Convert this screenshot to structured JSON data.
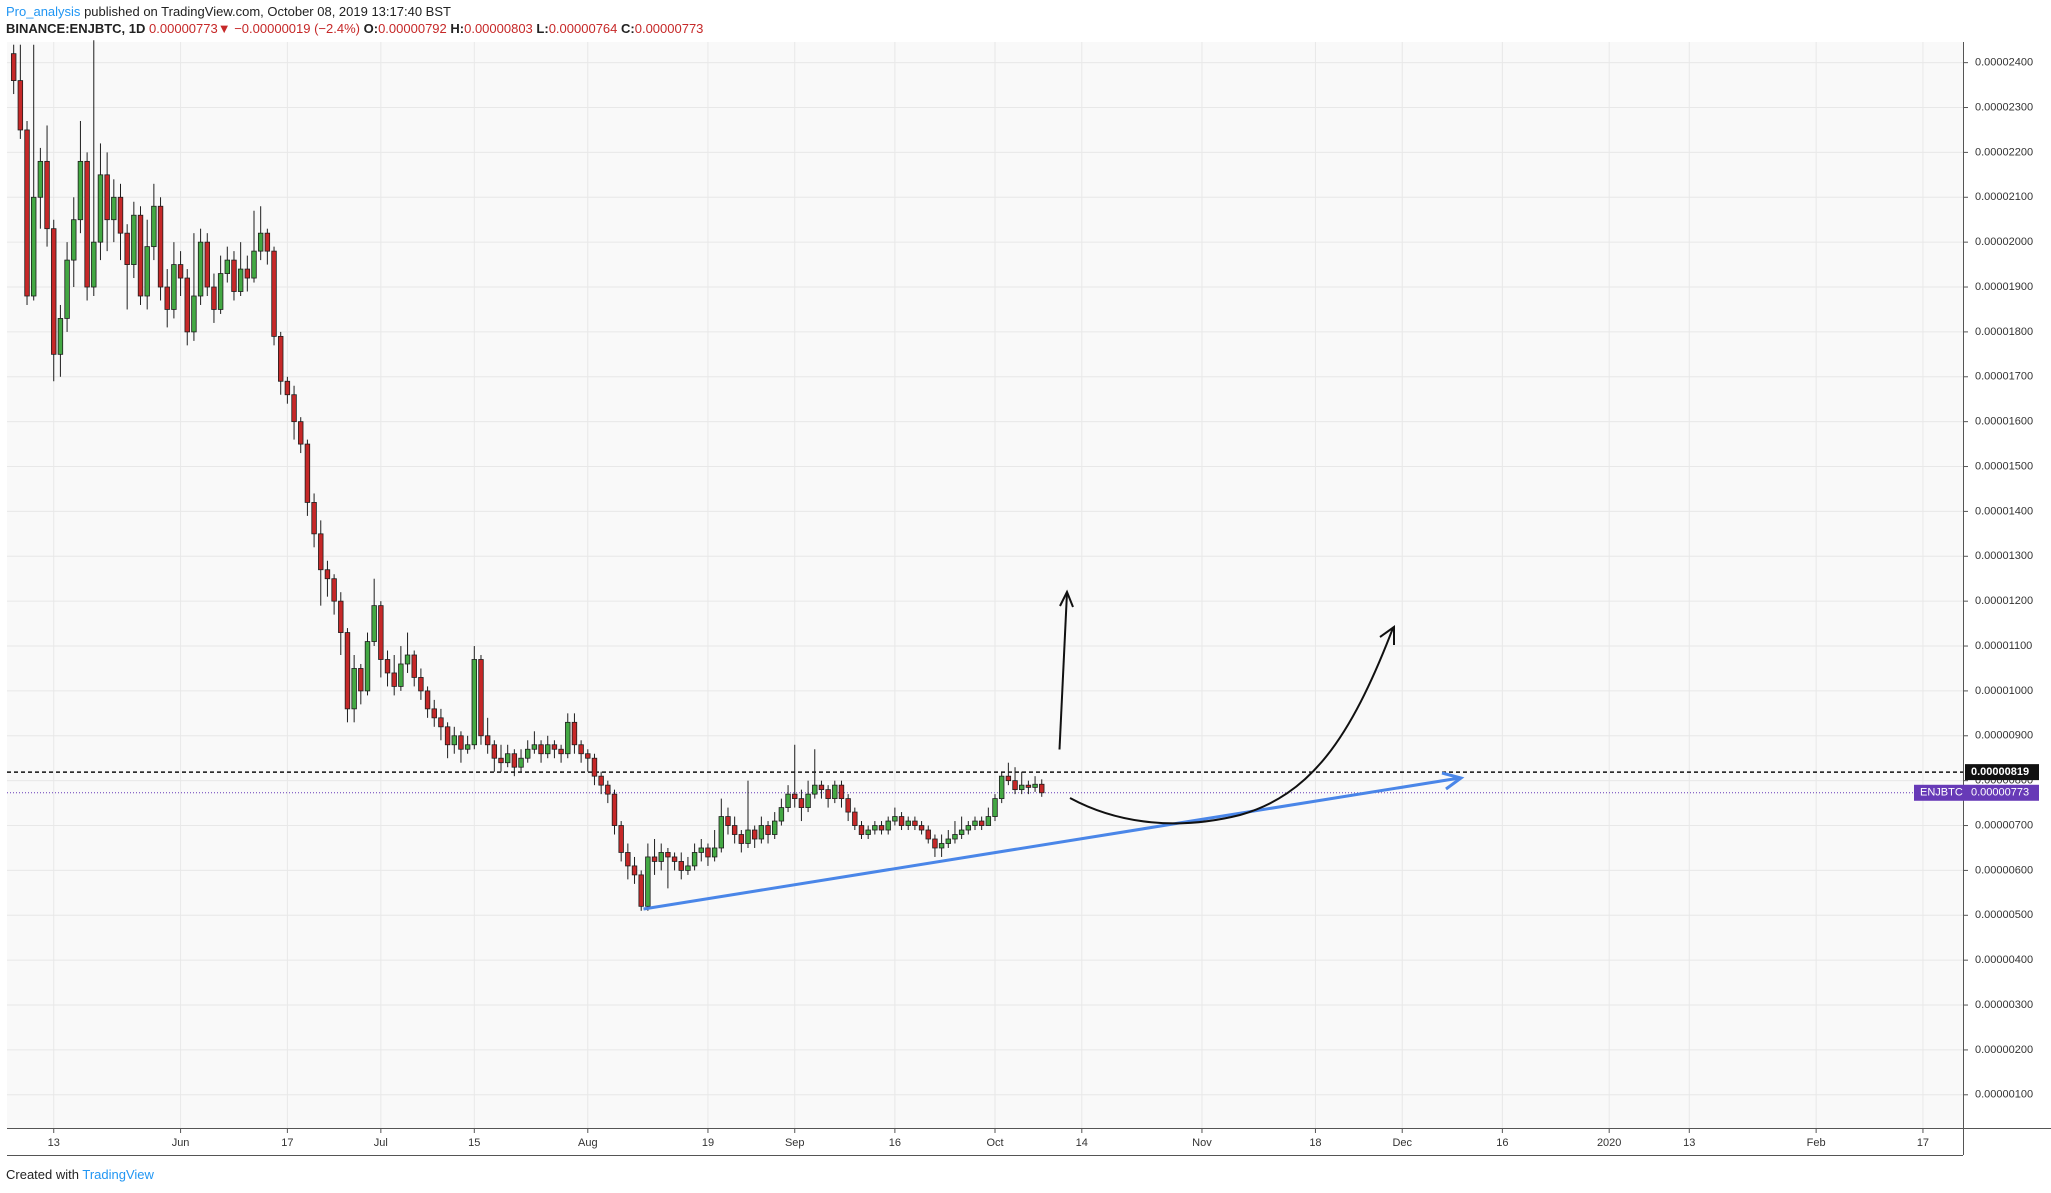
{
  "header": {
    "author": "Pro_analysis",
    "published": "published on TradingView.com, October 08, 2019 13:17:40 BST",
    "symbol": "BINANCE:ENJBTC, 1D",
    "last": "0.00000773",
    "arrow": "▼",
    "change": "−0.00000019 (−2.4%)",
    "o_label": "O:",
    "o": "0.00000792",
    "h_label": "H:",
    "h": "0.00000803",
    "l_label": "L:",
    "l": "0.00000764",
    "c_label": "C:",
    "c": "0.00000773"
  },
  "footer": {
    "created": "Created with",
    "brand": "TradingView"
  },
  "chart_data": {
    "type": "candlestick",
    "up_color": "#43a843",
    "down_color": "#c62828",
    "border_color": "#1e1e1e",
    "grid": true,
    "x": [
      "05-07",
      "05-08",
      "05-09",
      "05-10",
      "05-11",
      "05-12",
      "05-13",
      "05-14",
      "05-15",
      "05-16",
      "05-17",
      "05-18",
      "05-19",
      "05-20",
      "05-21",
      "05-22",
      "05-23",
      "05-24",
      "05-25",
      "05-26",
      "05-27",
      "05-28",
      "05-29",
      "05-30",
      "05-31",
      "06-01",
      "06-02",
      "06-03",
      "06-04",
      "06-05",
      "06-06",
      "06-07",
      "06-08",
      "06-09",
      "06-10",
      "06-11",
      "06-12",
      "06-13",
      "06-14",
      "06-15",
      "06-16",
      "06-17",
      "06-18",
      "06-19",
      "06-20",
      "06-21",
      "06-22",
      "06-23",
      "06-24",
      "06-25",
      "06-26",
      "06-27",
      "06-28",
      "06-29",
      "06-30",
      "07-01",
      "07-02",
      "07-03",
      "07-04",
      "07-05",
      "07-06",
      "07-07",
      "07-08",
      "07-09",
      "07-10",
      "07-11",
      "07-12",
      "07-13",
      "07-14",
      "07-15",
      "07-16",
      "07-17",
      "07-18",
      "07-19",
      "07-20",
      "07-21",
      "07-22",
      "07-23",
      "07-24",
      "07-25",
      "07-26",
      "07-27",
      "07-28",
      "07-29",
      "07-30",
      "07-31",
      "08-01",
      "08-02",
      "08-03",
      "08-04",
      "08-05",
      "08-06",
      "08-07",
      "08-08",
      "08-09",
      "08-10",
      "08-11",
      "08-12",
      "08-13",
      "08-14",
      "08-15",
      "08-16",
      "08-17",
      "08-18",
      "08-19",
      "08-20",
      "08-21",
      "08-22",
      "08-23",
      "08-24",
      "08-25",
      "08-26",
      "08-27",
      "08-28",
      "08-29",
      "08-30",
      "08-31",
      "09-01",
      "09-02",
      "09-03",
      "09-04",
      "09-05",
      "09-06",
      "09-07",
      "09-08",
      "09-09",
      "09-10",
      "09-11",
      "09-12",
      "09-13",
      "09-14",
      "09-15",
      "09-16",
      "09-17",
      "09-18",
      "09-19",
      "09-20",
      "09-21",
      "09-22",
      "09-23",
      "09-24",
      "09-25",
      "09-26",
      "09-27",
      "09-28",
      "09-29",
      "09-30",
      "10-01",
      "10-02",
      "10-03",
      "10-04",
      "10-05",
      "10-06",
      "10-07",
      "10-08"
    ],
    "open": [
      2.42e-05,
      2.36e-05,
      2.25e-05,
      1.88e-05,
      2.1e-05,
      2.18e-05,
      2.03e-05,
      1.75e-05,
      1.83e-05,
      1.96e-05,
      2.05e-05,
      2.18e-05,
      1.9e-05,
      2e-05,
      2.15e-05,
      2.05e-05,
      2.1e-05,
      2.02e-05,
      1.95e-05,
      2.06e-05,
      1.88e-05,
      1.99e-05,
      2.08e-05,
      1.9e-05,
      1.85e-05,
      1.95e-05,
      1.92e-05,
      1.8e-05,
      1.88e-05,
      2e-05,
      1.9e-05,
      1.85e-05,
      1.93e-05,
      1.96e-05,
      1.89e-05,
      1.94e-05,
      1.92e-05,
      1.98e-05,
      2.02e-05,
      1.98e-05,
      1.79e-05,
      1.69e-05,
      1.66e-05,
      1.6e-05,
      1.55e-05,
      1.42e-05,
      1.35e-05,
      1.27e-05,
      1.25e-05,
      1.2e-05,
      1.13e-05,
      9.6e-06,
      1.05e-05,
      1e-05,
      1.11e-05,
      1.19e-05,
      1.07e-05,
      1.04e-05,
      1.01e-05,
      1.06e-05,
      1.08e-05,
      1.03e-05,
      1e-05,
      9.6e-06,
      9.4e-06,
      9.2e-06,
      8.8e-06,
      9e-06,
      8.7e-06,
      8.8e-06,
      1.07e-05,
      9e-06,
      8.8e-06,
      8.5e-06,
      8.4e-06,
      8.6e-06,
      8.3e-06,
      8.5e-06,
      8.7e-06,
      8.8e-06,
      8.6e-06,
      8.8e-06,
      8.7e-06,
      8.6e-06,
      9.3e-06,
      8.8e-06,
      8.6e-06,
      8.5e-06,
      8.1e-06,
      7.9e-06,
      7.7e-06,
      7e-06,
      6.4e-06,
      6.1e-06,
      5.9e-06,
      5.2e-06,
      6.3e-06,
      6.2e-06,
      6.4e-06,
      6.3e-06,
      6.2e-06,
      6e-06,
      6.1e-06,
      6.4e-06,
      6.5e-06,
      6.3e-06,
      6.5e-06,
      7.2e-06,
      7e-06,
      6.8e-06,
      6.6e-06,
      6.9e-06,
      6.7e-06,
      7e-06,
      6.8e-06,
      7.1e-06,
      7.4e-06,
      7.7e-06,
      7.6e-06,
      7.4e-06,
      7.7e-06,
      7.9e-06,
      7.8e-06,
      7.6e-06,
      7.9e-06,
      7.6e-06,
      7.3e-06,
      7e-06,
      6.8e-06,
      6.9e-06,
      7e-06,
      6.9e-06,
      7.1e-06,
      7.2e-06,
      7e-06,
      7.1e-06,
      7e-06,
      6.9e-06,
      6.7e-06,
      6.5e-06,
      6.6e-06,
      6.7e-06,
      6.8e-06,
      6.9e-06,
      7e-06,
      7.1e-06,
      7e-06,
      7.2e-06,
      7.6e-06,
      8.1e-06,
      8e-06,
      7.8e-06,
      7.9e-06,
      7.85e-06,
      7.92e-06
    ],
    "high": [
      2.44e-05,
      2.44e-05,
      2.27e-05,
      2.44e-05,
      2.21e-05,
      2.26e-05,
      2.05e-05,
      1.86e-05,
      2e-05,
      2.1e-05,
      2.27e-05,
      2.2e-05,
      2.45e-05,
      2.22e-05,
      2.2e-05,
      2.14e-05,
      2.13e-05,
      2.04e-05,
      2.09e-05,
      2.08e-05,
      2.05e-05,
      2.13e-05,
      2.1e-05,
      1.94e-05,
      2e-05,
      1.98e-05,
      1.94e-05,
      2.02e-05,
      2.03e-05,
      2.02e-05,
      1.93e-05,
      1.97e-05,
      1.99e-05,
      1.98e-05,
      2e-05,
      1.97e-05,
      2.07e-05,
      2.08e-05,
      2.03e-05,
      1.99e-05,
      1.8e-05,
      1.7e-05,
      1.68e-05,
      1.61e-05,
      1.56e-05,
      1.44e-05,
      1.38e-05,
      1.29e-05,
      1.26e-05,
      1.22e-05,
      1.14e-05,
      1.08e-05,
      1.06e-05,
      1.13e-05,
      1.25e-05,
      1.2e-05,
      1.09e-05,
      1.08e-05,
      1.1e-05,
      1.13e-05,
      1.09e-05,
      1.05e-05,
      1.01e-05,
      9.8e-06,
      9.6e-06,
      9.3e-06,
      9.2e-06,
      9.1e-06,
      9e-06,
      1.1e-05,
      1.08e-05,
      9.4e-06,
      8.9e-06,
      8.8e-06,
      8.8e-06,
      8.7e-06,
      8.7e-06,
      8.9e-06,
      9.1e-06,
      8.9e-06,
      9e-06,
      8.9e-06,
      8.8e-06,
      9.5e-06,
      9.5e-06,
      8.9e-06,
      8.7e-06,
      8.6e-06,
      8.2e-06,
      8e-06,
      7.8e-06,
      7.1e-06,
      6.6e-06,
      6.3e-06,
      6e-06,
      6.6e-06,
      6.7e-06,
      6.6e-06,
      6.5e-06,
      6.4e-06,
      6.4e-06,
      6.3e-06,
      6.6e-06,
      6.7e-06,
      6.6e-06,
      6.9e-06,
      7.6e-06,
      7.4e-06,
      7.2e-06,
      6.9e-06,
      8e-06,
      7e-06,
      7.2e-06,
      7.1e-06,
      7.3e-06,
      7.6e-06,
      7.9e-06,
      8.8e-06,
      7.8e-06,
      8e-06,
      8.7e-06,
      8e-06,
      7.9e-06,
      8e-06,
      8e-06,
      7.7e-06,
      7.4e-06,
      7.1e-06,
      7e-06,
      7.1e-06,
      7.1e-06,
      7.2e-06,
      7.4e-06,
      7.3e-06,
      7.2e-06,
      7.2e-06,
      7.1e-06,
      7e-06,
      6.8e-06,
      6.8e-06,
      6.9e-06,
      7.1e-06,
      7.2e-06,
      7.1e-06,
      7.2e-06,
      7.2e-06,
      7.4e-06,
      7.7e-06,
      8.2e-06,
      8.4e-06,
      8.3e-06,
      8.2e-06,
      8e-06,
      8.1e-06,
      8.03e-06
    ],
    "low": [
      2.33e-05,
      2.23e-05,
      1.86e-05,
      1.87e-05,
      2.03e-05,
      1.99e-05,
      1.69e-05,
      1.7e-05,
      1.8e-05,
      1.9e-05,
      2.02e-05,
      1.87e-05,
      1.88e-05,
      1.96e-05,
      1.98e-05,
      2e-05,
      1.96e-05,
      1.85e-05,
      1.92e-05,
      1.86e-05,
      1.85e-05,
      1.96e-05,
      1.87e-05,
      1.81e-05,
      1.83e-05,
      1.88e-05,
      1.77e-05,
      1.78e-05,
      1.86e-05,
      1.88e-05,
      1.82e-05,
      1.84e-05,
      1.91e-05,
      1.87e-05,
      1.88e-05,
      1.89e-05,
      1.91e-05,
      1.96e-05,
      1.95e-05,
      1.77e-05,
      1.66e-05,
      1.64e-05,
      1.56e-05,
      1.53e-05,
      1.39e-05,
      1.32e-05,
      1.19e-05,
      1.21e-05,
      1.17e-05,
      1.08e-05,
      9.3e-06,
      9.3e-06,
      9.7e-06,
      9.9e-06,
      1.1e-05,
      1.03e-05,
      1.01e-05,
      9.9e-06,
      1e-05,
      1.04e-05,
      1.01e-05,
      9.8e-06,
      9.4e-06,
      9.2e-06,
      8.9e-06,
      8.5e-06,
      8.6e-06,
      8.4e-06,
      8.6e-06,
      8.7e-06,
      8.8e-06,
      8.6e-06,
      8.2e-06,
      8.2e-06,
      8.3e-06,
      8.1e-06,
      8.2e-06,
      8.4e-06,
      8.6e-06,
      8.4e-06,
      8.5e-06,
      8.5e-06,
      8.4e-06,
      8.5e-06,
      8.6e-06,
      8.4e-06,
      8.2e-06,
      7.9e-06,
      7.7e-06,
      7.5e-06,
      6.8e-06,
      6.2e-06,
      5.8e-06,
      5.7e-06,
      5.1e-06,
      5.1e-06,
      5.9e-06,
      6e-06,
      5.6e-06,
      6e-06,
      5.8e-06,
      5.9e-06,
      6e-06,
      6.2e-06,
      6.1e-06,
      6.2e-06,
      6.4e-06,
      6.8e-06,
      6.6e-06,
      6.4e-06,
      6.5e-06,
      6.5e-06,
      6.6e-06,
      6.6e-06,
      6.7e-06,
      7e-06,
      7.3e-06,
      7.4e-06,
      7.1e-06,
      7.3e-06,
      7.6e-06,
      7.6e-06,
      7.4e-06,
      7.5e-06,
      7.4e-06,
      7.1e-06,
      6.9e-06,
      6.7e-06,
      6.7e-06,
      6.8e-06,
      6.8e-06,
      6.8e-06,
      7e-06,
      6.9e-06,
      6.9e-06,
      6.9e-06,
      6.8e-06,
      6.6e-06,
      6.3e-06,
      6.3e-06,
      6.5e-06,
      6.6e-06,
      6.7e-06,
      6.8e-06,
      6.9e-06,
      6.9e-06,
      7e-06,
      7.1e-06,
      7.5e-06,
      7.9e-06,
      7.7e-06,
      7.7e-06,
      7.7e-06,
      7.75e-06,
      7.64e-06
    ],
    "close": [
      2.36e-05,
      2.25e-05,
      1.88e-05,
      2.1e-05,
      2.18e-05,
      2.03e-05,
      1.75e-05,
      1.83e-05,
      1.96e-05,
      2.05e-05,
      2.18e-05,
      1.9e-05,
      2e-05,
      2.15e-05,
      2.05e-05,
      2.1e-05,
      2.02e-05,
      1.95e-05,
      2.06e-05,
      1.88e-05,
      1.99e-05,
      2.08e-05,
      1.9e-05,
      1.85e-05,
      1.95e-05,
      1.92e-05,
      1.8e-05,
      1.88e-05,
      2e-05,
      1.9e-05,
      1.85e-05,
      1.93e-05,
      1.96e-05,
      1.89e-05,
      1.94e-05,
      1.92e-05,
      1.98e-05,
      2.02e-05,
      1.98e-05,
      1.79e-05,
      1.69e-05,
      1.66e-05,
      1.6e-05,
      1.55e-05,
      1.42e-05,
      1.35e-05,
      1.27e-05,
      1.25e-05,
      1.2e-05,
      1.13e-05,
      9.6e-06,
      1.05e-05,
      1e-05,
      1.11e-05,
      1.19e-05,
      1.07e-05,
      1.04e-05,
      1.01e-05,
      1.06e-05,
      1.08e-05,
      1.03e-05,
      1e-05,
      9.6e-06,
      9.4e-06,
      9.2e-06,
      8.8e-06,
      9e-06,
      8.7e-06,
      8.8e-06,
      1.07e-05,
      9e-06,
      8.8e-06,
      8.5e-06,
      8.4e-06,
      8.6e-06,
      8.3e-06,
      8.5e-06,
      8.7e-06,
      8.8e-06,
      8.6e-06,
      8.8e-06,
      8.7e-06,
      8.6e-06,
      9.3e-06,
      8.8e-06,
      8.6e-06,
      8.5e-06,
      8.1e-06,
      7.9e-06,
      7.7e-06,
      7e-06,
      6.4e-06,
      6.1e-06,
      5.9e-06,
      5.2e-06,
      6.3e-06,
      6.2e-06,
      6.4e-06,
      6.3e-06,
      6.2e-06,
      6e-06,
      6.1e-06,
      6.4e-06,
      6.5e-06,
      6.3e-06,
      6.5e-06,
      7.2e-06,
      7e-06,
      6.8e-06,
      6.6e-06,
      6.9e-06,
      6.7e-06,
      7e-06,
      6.8e-06,
      7.1e-06,
      7.4e-06,
      7.7e-06,
      7.6e-06,
      7.4e-06,
      7.7e-06,
      7.9e-06,
      7.8e-06,
      7.6e-06,
      7.9e-06,
      7.6e-06,
      7.3e-06,
      7e-06,
      6.8e-06,
      6.9e-06,
      7e-06,
      6.9e-06,
      7.1e-06,
      7.2e-06,
      7e-06,
      7.1e-06,
      7e-06,
      6.9e-06,
      6.7e-06,
      6.5e-06,
      6.6e-06,
      6.7e-06,
      6.8e-06,
      6.9e-06,
      7e-06,
      7.1e-06,
      7e-06,
      7.2e-06,
      7.6e-06,
      8.1e-06,
      8e-06,
      7.8e-06,
      7.9e-06,
      7.85e-06,
      7.92e-06,
      7.73e-06
    ],
    "xlim": [
      "05-06",
      "02-23"
    ],
    "xticks": [
      {
        "value": "05-13",
        "label": "13"
      },
      {
        "value": "06-01",
        "label": "Jun"
      },
      {
        "value": "06-17",
        "label": "17"
      },
      {
        "value": "07-01",
        "label": "Jul"
      },
      {
        "value": "07-15",
        "label": "15"
      },
      {
        "value": "08-01",
        "label": "Aug"
      },
      {
        "value": "08-19",
        "label": "19"
      },
      {
        "value": "09-01",
        "label": "Sep"
      },
      {
        "value": "09-16",
        "label": "16"
      },
      {
        "value": "10-01",
        "label": "Oct"
      },
      {
        "value": "10-14",
        "label": "14"
      },
      {
        "value": "11-01",
        "label": "Nov"
      },
      {
        "value": "11-18",
        "label": "18"
      },
      {
        "value": "12-01",
        "label": "Dec"
      },
      {
        "value": "12-16",
        "label": "16"
      },
      {
        "value": "01-01",
        "label": "2020"
      },
      {
        "value": "01-13",
        "label": "13"
      },
      {
        "value": "02-01",
        "label": "Feb"
      },
      {
        "value": "02-17",
        "label": "17"
      }
    ],
    "ylim": [
      2.6e-07,
      2.446e-05
    ],
    "yticks": [
      {
        "value": 1e-06,
        "label": "0.00000100"
      },
      {
        "value": 2e-06,
        "label": "0.00000200"
      },
      {
        "value": 3e-06,
        "label": "0.00000300"
      },
      {
        "value": 4e-06,
        "label": "0.00000400"
      },
      {
        "value": 5e-06,
        "label": "0.00000500"
      },
      {
        "value": 6e-06,
        "label": "0.00000600"
      },
      {
        "value": 7e-06,
        "label": "0.00000700"
      },
      {
        "value": 8e-06,
        "label": "0.00000800"
      },
      {
        "value": 9e-06,
        "label": "0.00000900"
      },
      {
        "value": 1e-05,
        "label": "0.00001000"
      },
      {
        "value": 1.1e-05,
        "label": "0.00001100"
      },
      {
        "value": 1.2e-05,
        "label": "0.00001200"
      },
      {
        "value": 1.3e-05,
        "label": "0.00001300"
      },
      {
        "value": 1.4e-05,
        "label": "0.00001400"
      },
      {
        "value": 1.5e-05,
        "label": "0.00001500"
      },
      {
        "value": 1.6e-05,
        "label": "0.00001600"
      },
      {
        "value": 1.7e-05,
        "label": "0.00001700"
      },
      {
        "value": 1.8e-05,
        "label": "0.00001800"
      },
      {
        "value": 1.9e-05,
        "label": "0.00001900"
      },
      {
        "value": 2e-05,
        "label": "0.00002000"
      },
      {
        "value": 2.1e-05,
        "label": "0.00002100"
      },
      {
        "value": 2.2e-05,
        "label": "0.00002200"
      },
      {
        "value": 2.3e-05,
        "label": "0.00002300"
      },
      {
        "value": 2.4e-05,
        "label": "0.00002400"
      }
    ],
    "level": {
      "value": 8.19e-06,
      "label": "0.00000819"
    },
    "symbol": "ENJBTC",
    "last_price": {
      "value": 7.73e-06,
      "label": "0.00000773"
    },
    "last_color": "#673ab7"
  }
}
